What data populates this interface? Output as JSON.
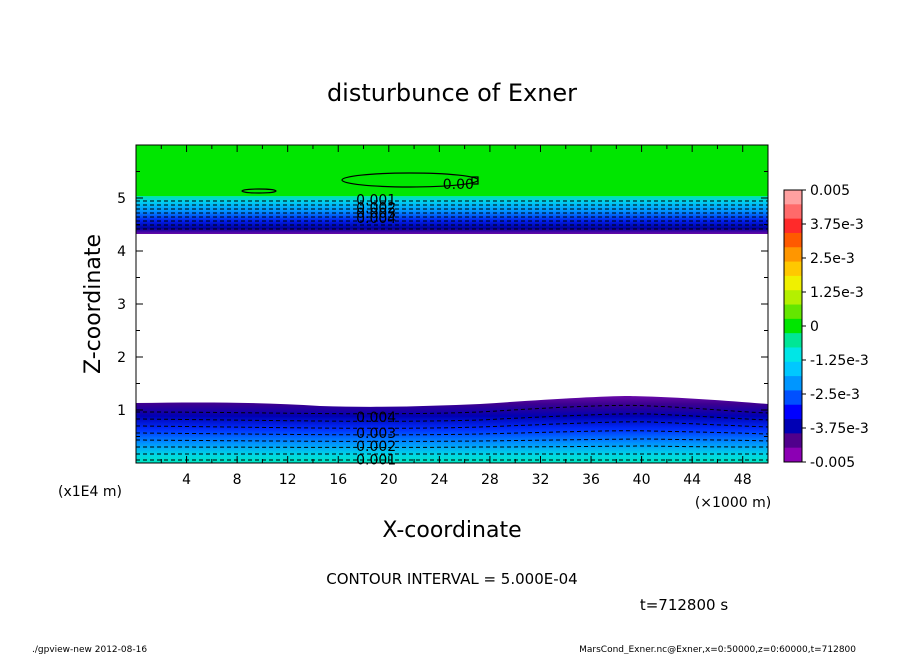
{
  "chart_data": {
    "type": "contour",
    "title": "disturbunce of Exner",
    "xlabel": "X-coordinate",
    "ylabel": "Z-coordinate",
    "x_unit": "(×1000 m)",
    "y_unit": "(x1E4 m)",
    "xlim": [
      0,
      50
    ],
    "ylim": [
      0,
      6
    ],
    "x_ticks": [
      4,
      8,
      12,
      16,
      20,
      24,
      28,
      32,
      36,
      40,
      44,
      48
    ],
    "y_ticks": [
      1,
      2,
      3,
      4,
      5
    ],
    "grid": false,
    "contour_interval_text": "CONTOUR INTERVAL = 5.000E-04",
    "time_text": "t=712800 s",
    "footer_left": "./gpview-new  2012-08-16",
    "footer_right": "MarsCond_Exner.nc@Exner,x=0:50000,z=0:60000,t=712800",
    "contour_labels": [
      {
        "text": "0.001",
        "x": 19,
        "z": 4.95
      },
      {
        "text": "0.002",
        "x": 19,
        "z": 4.8
      },
      {
        "text": "0.003",
        "x": 19,
        "z": 4.7
      },
      {
        "text": "0.004",
        "x": 19,
        "z": 4.6
      },
      {
        "text": "0.00",
        "x": 25.5,
        "z": 5.25
      },
      {
        "text": "0.004",
        "x": 19,
        "z": 0.85
      },
      {
        "text": "0.003",
        "x": 19,
        "z": 0.55
      },
      {
        "text": "0.002",
        "x": 19,
        "z": 0.3
      },
      {
        "text": "0.001",
        "x": 19,
        "z": 0.05
      }
    ],
    "colorbar": {
      "labels": [
        "0.005",
        "3.75e-3",
        "2.5e-3",
        "1.25e-3",
        "0",
        "-1.25e-3",
        "-2.5e-3",
        "-3.75e-3",
        "-0.005"
      ],
      "colors": [
        "#ffa0a0",
        "#ff6a6a",
        "#ff2a2a",
        "#ff5a00",
        "#ff9600",
        "#ffc800",
        "#f0f000",
        "#b4f000",
        "#64e600",
        "#00e600",
        "#00e696",
        "#00e6e6",
        "#00c8ff",
        "#0096ff",
        "#0050ff",
        "#0000ff",
        "#0000b4",
        "#50008c",
        "#8c00b4"
      ]
    }
  }
}
